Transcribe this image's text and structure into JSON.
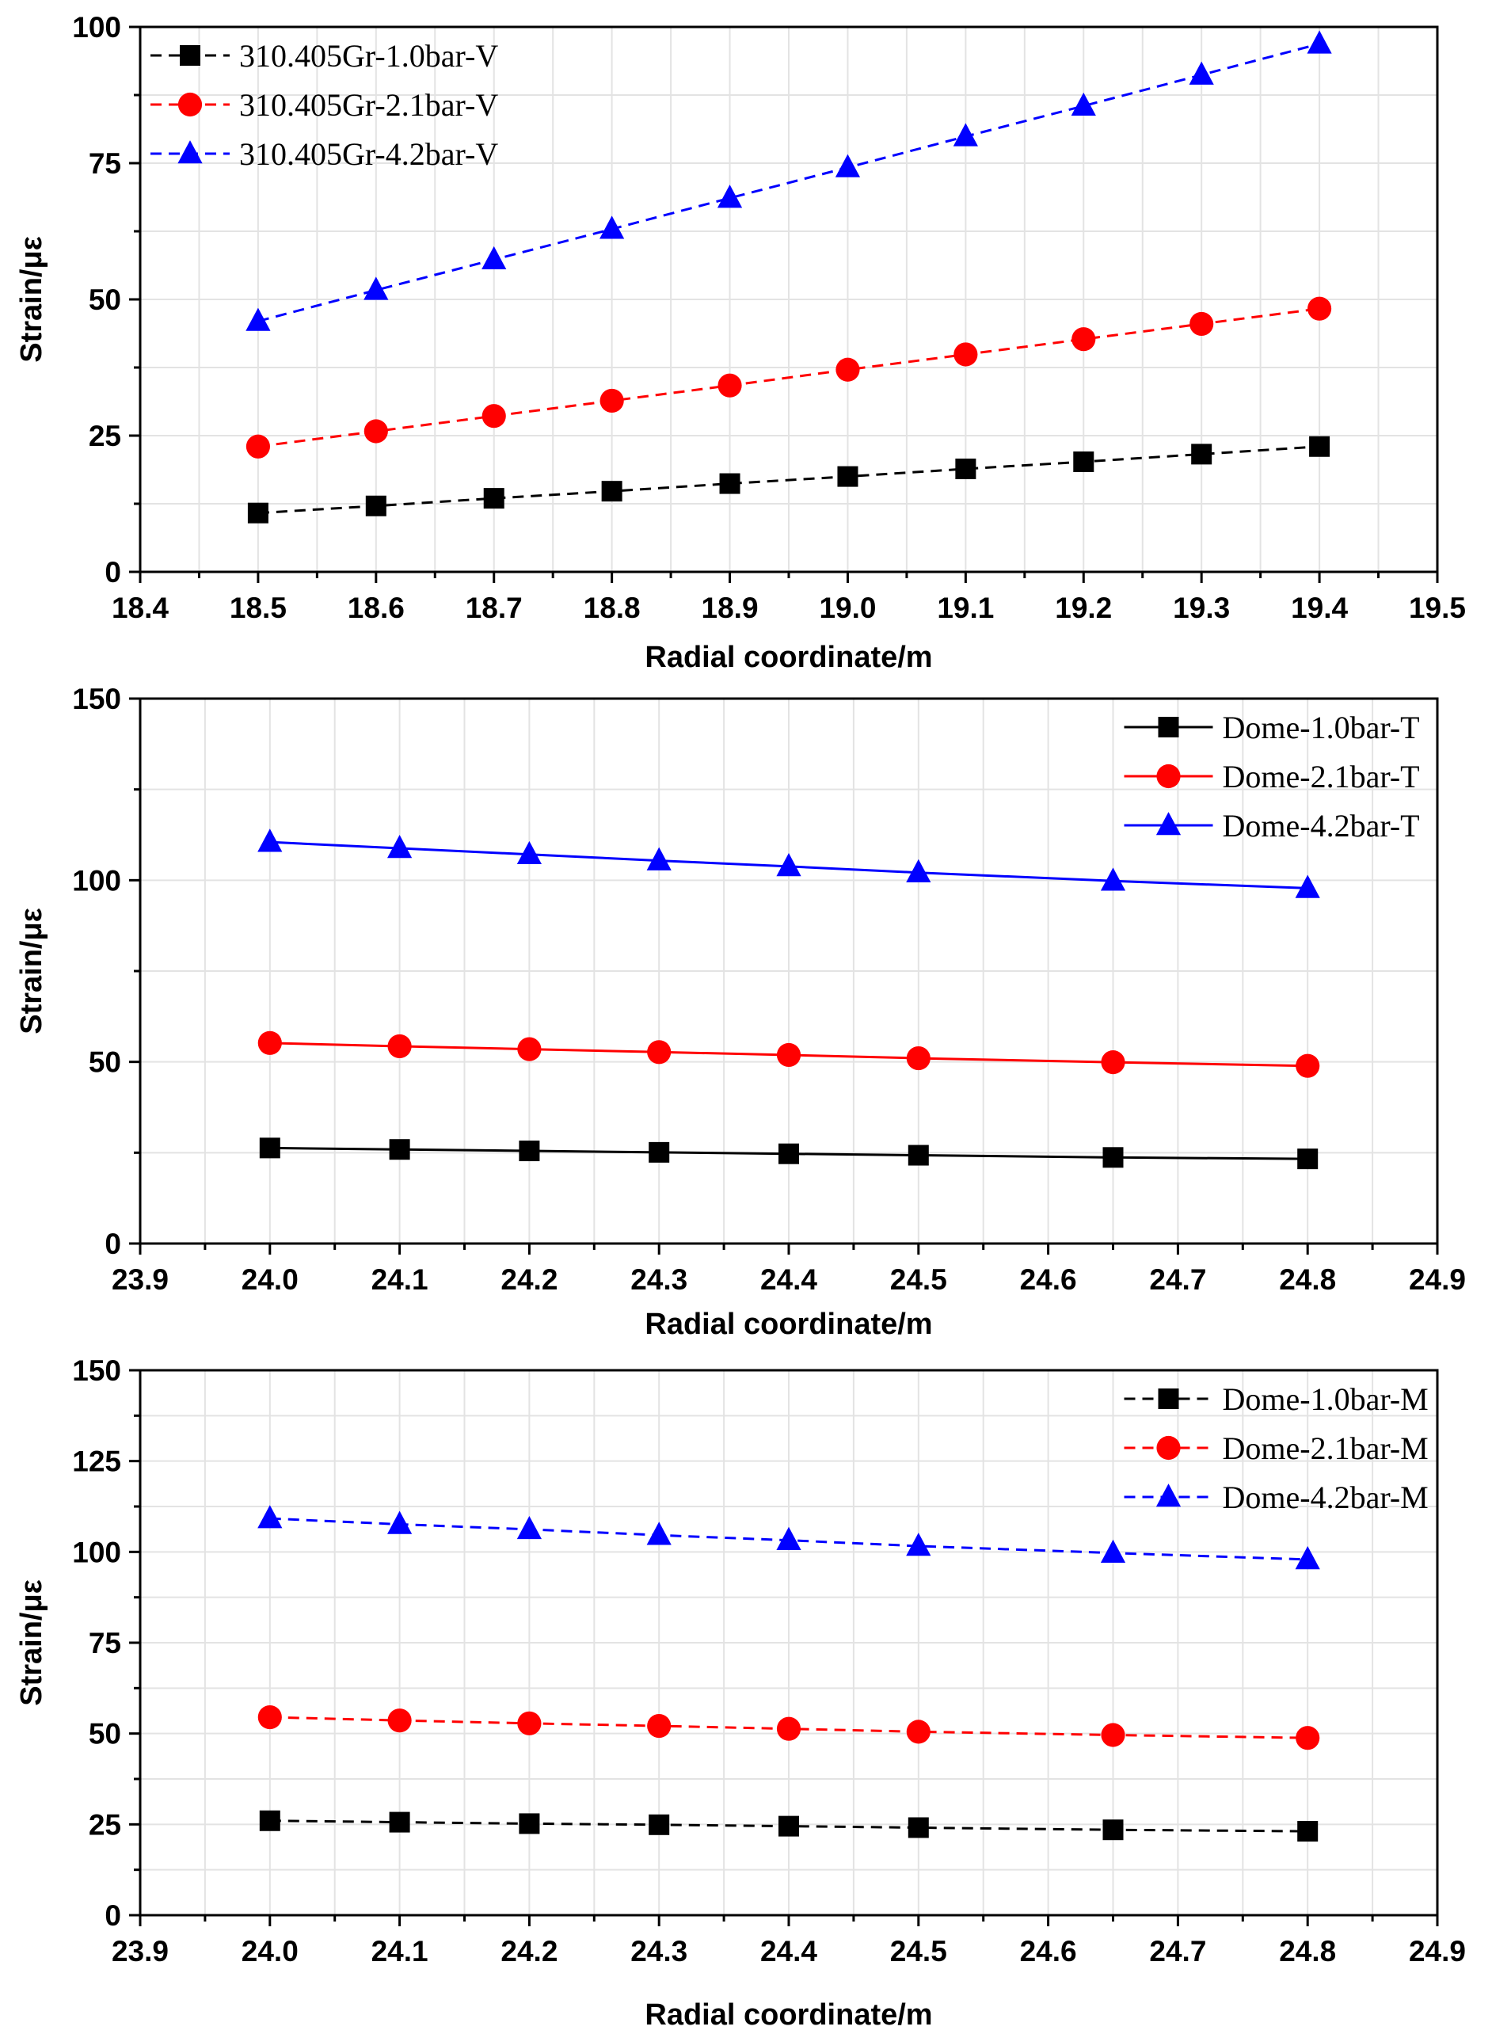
{
  "chart_data": [
    {
      "type": "line",
      "xlabel": "Radial coordinate/m",
      "ylabel": "Strain/με",
      "xlim": [
        18.4,
        19.5
      ],
      "ylim": [
        0,
        100
      ],
      "xticks": [
        "18.4",
        "18.5",
        "18.6",
        "18.7",
        "18.8",
        "18.9",
        "19.0",
        "19.1",
        "19.2",
        "19.3",
        "19.4",
        "19.5"
      ],
      "yticks": [
        "0",
        "25",
        "50",
        "75",
        "100"
      ],
      "grid": true,
      "legend_position": "top-left",
      "line_style": "dashed",
      "x": [
        18.5,
        18.6,
        18.7,
        18.8,
        18.9,
        19.0,
        19.1,
        19.2,
        19.3,
        19.4
      ],
      "series": [
        {
          "name": "310.405Gr-1.0bar-V",
          "color": "#000000",
          "marker": "square",
          "values": [
            10.8,
            12.1,
            13.5,
            14.8,
            16.2,
            17.5,
            18.9,
            20.2,
            21.6,
            23.0
          ]
        },
        {
          "name": "310.405Gr-2.1bar-V",
          "color": "#ff0000",
          "marker": "circle",
          "values": [
            23.0,
            25.8,
            28.6,
            31.4,
            34.2,
            37.1,
            39.9,
            42.7,
            45.5,
            48.3
          ]
        },
        {
          "name": "310.405Gr-4.2bar-V",
          "color": "#0000ff",
          "marker": "triangle",
          "values": [
            46.0,
            51.7,
            57.3,
            62.9,
            68.6,
            74.2,
            79.9,
            85.5,
            91.2,
            96.9
          ]
        }
      ]
    },
    {
      "type": "line",
      "xlabel": "Radial coordinate/m",
      "ylabel": "Strain/με",
      "xlim": [
        23.9,
        24.9
      ],
      "ylim": [
        0,
        150
      ],
      "xticks": [
        "23.9",
        "24.0",
        "24.1",
        "24.2",
        "24.3",
        "24.4",
        "24.5",
        "24.6",
        "24.7",
        "24.8",
        "24.9"
      ],
      "yticks": [
        "0",
        "50",
        "100",
        "150"
      ],
      "grid": true,
      "legend_position": "top-right",
      "line_style": "solid",
      "x": [
        24.0,
        24.1,
        24.2,
        24.3,
        24.4,
        24.5,
        24.65,
        24.8
      ],
      "series": [
        {
          "name": "Dome-1.0bar-T",
          "color": "#000000",
          "marker": "square",
          "values": [
            26.3,
            25.9,
            25.5,
            25.1,
            24.7,
            24.3,
            23.7,
            23.3
          ]
        },
        {
          "name": "Dome-2.1bar-T",
          "color": "#ff0000",
          "marker": "circle",
          "values": [
            55.2,
            54.3,
            53.5,
            52.7,
            51.9,
            51.0,
            49.9,
            48.9
          ]
        },
        {
          "name": "Dome-4.2bar-T",
          "color": "#0000ff",
          "marker": "triangle",
          "values": [
            110.5,
            108.8,
            107.1,
            105.4,
            103.8,
            102.1,
            99.8,
            97.8
          ]
        }
      ]
    },
    {
      "type": "line",
      "xlabel": "Radial coordinate/m",
      "ylabel": "Strain/με",
      "xlim": [
        23.9,
        24.9
      ],
      "ylim": [
        0,
        150
      ],
      "xticks": [
        "23.9",
        "24.0",
        "24.1",
        "24.2",
        "24.3",
        "24.4",
        "24.5",
        "24.6",
        "24.7",
        "24.8",
        "24.9"
      ],
      "yticks": [
        "0",
        "25",
        "50",
        "75",
        "100",
        "125",
        "150"
      ],
      "grid": true,
      "legend_position": "top-right",
      "line_style": "dashed",
      "x": [
        24.0,
        24.1,
        24.2,
        24.3,
        24.4,
        24.5,
        24.65,
        24.8
      ],
      "series": [
        {
          "name": "Dome-1.0bar-M",
          "color": "#000000",
          "marker": "square",
          "values": [
            26.0,
            25.6,
            25.2,
            24.9,
            24.5,
            24.1,
            23.5,
            23.1
          ]
        },
        {
          "name": "Dome-2.1bar-M",
          "color": "#ff0000",
          "marker": "circle",
          "values": [
            54.5,
            53.6,
            52.8,
            52.1,
            51.3,
            50.5,
            49.6,
            48.8
          ]
        },
        {
          "name": "Dome-4.2bar-M",
          "color": "#0000ff",
          "marker": "triangle",
          "values": [
            109.2,
            107.6,
            106.2,
            104.6,
            103.2,
            101.6,
            99.7,
            97.9
          ]
        }
      ]
    }
  ]
}
